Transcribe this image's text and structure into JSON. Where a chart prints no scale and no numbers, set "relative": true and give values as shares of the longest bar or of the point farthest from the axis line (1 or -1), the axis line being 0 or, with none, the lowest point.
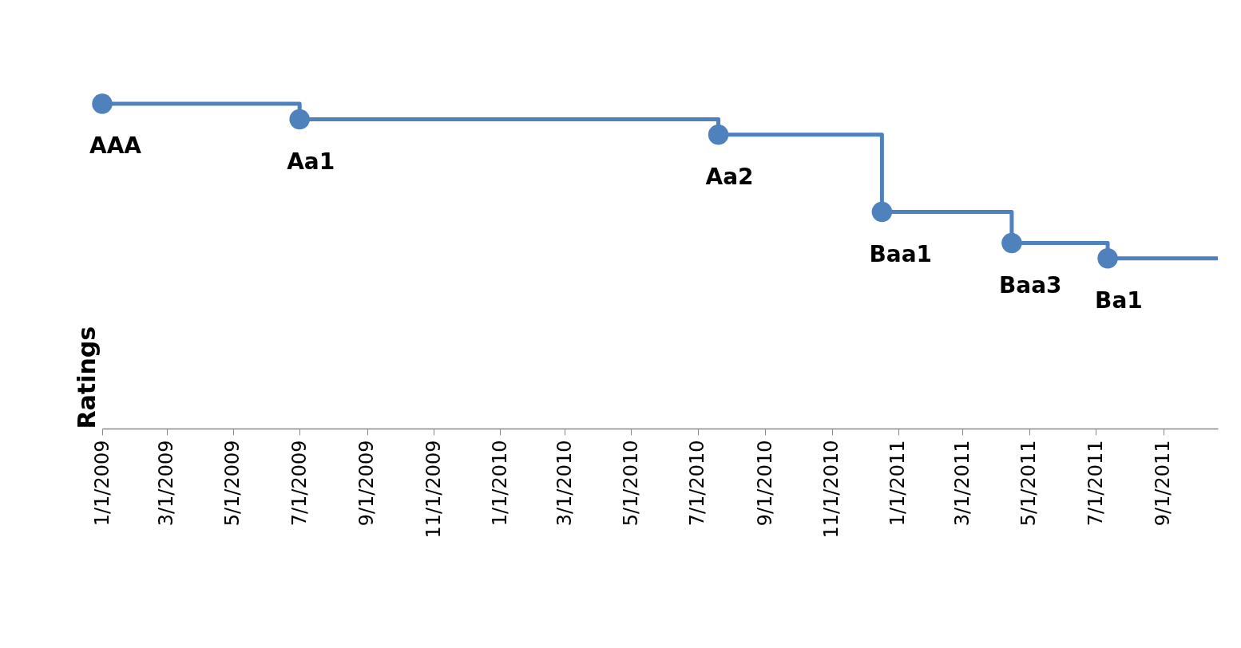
{
  "chart_data": {
    "type": "step",
    "ylabel": "Ratings",
    "relative": true,
    "x": [
      "2009-01-01",
      "2009-07-01",
      "2010-07-20",
      "2010-12-17",
      "2011-04-15",
      "2011-07-12",
      "2011-10-21"
    ],
    "series": [
      {
        "color": "#4f81bd",
        "values": [
          1,
          0.952,
          0.905,
          0.667,
          0.571,
          0.524,
          0.524
        ]
      }
    ],
    "annotations": [
      {
        "text": "AAA",
        "x": "2009-01-01",
        "y": 1
      },
      {
        "text": "Aa1",
        "x": "2009-07-01",
        "y": 0.952
      },
      {
        "text": "Aa2",
        "x": "2010-07-20",
        "y": 0.905
      },
      {
        "text": "Baa1",
        "x": "2010-12-17",
        "y": 0.667
      },
      {
        "text": "Baa3",
        "x": "2011-04-15",
        "y": 0.571
      },
      {
        "text": "Ba1",
        "x": "2011-07-12",
        "y": 0.524
      }
    ],
    "xlim": [
      "2009-01-01",
      "2011-10-21"
    ],
    "xticks": [
      {
        "value": "2009-01-01",
        "label": "1/1/2009"
      },
      {
        "value": "2009-03-01",
        "label": "3/1/2009"
      },
      {
        "value": "2009-05-01",
        "label": "5/1/2009"
      },
      {
        "value": "2009-07-01",
        "label": "7/1/2009"
      },
      {
        "value": "2009-09-01",
        "label": "9/1/2009"
      },
      {
        "value": "2009-11-01",
        "label": "11/1/2009"
      },
      {
        "value": "2010-01-01",
        "label": "1/1/2010"
      },
      {
        "value": "2010-03-01",
        "label": "3/1/2010"
      },
      {
        "value": "2010-05-01",
        "label": "5/1/2010"
      },
      {
        "value": "2010-07-01",
        "label": "7/1/2010"
      },
      {
        "value": "2010-09-01",
        "label": "9/1/2010"
      },
      {
        "value": "2010-11-01",
        "label": "11/1/2010"
      },
      {
        "value": "2011-01-01",
        "label": "1/1/2011"
      },
      {
        "value": "2011-03-01",
        "label": "3/1/2011"
      },
      {
        "value": "2011-05-01",
        "label": "5/1/2011"
      },
      {
        "value": "2011-07-01",
        "label": "7/1/2011"
      },
      {
        "value": "2011-09-01",
        "label": "9/1/2011"
      }
    ],
    "marker": "circle",
    "grid": false
  }
}
